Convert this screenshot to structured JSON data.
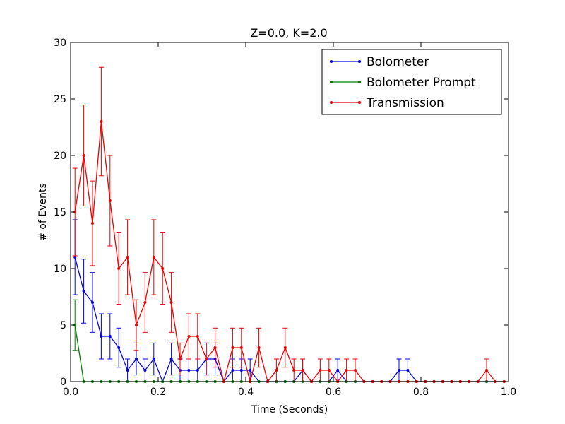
{
  "chart_data": {
    "type": "line",
    "title": "Z=0.0, K=2.0",
    "xlabel": "Time (Seconds)",
    "ylabel": "# of Events",
    "xlim": [
      0.0,
      1.0
    ],
    "ylim": [
      0,
      30
    ],
    "xticks": [
      "0.0",
      "0.2",
      "0.4",
      "0.6",
      "0.8",
      "1.0"
    ],
    "yticks": [
      "0",
      "5",
      "10",
      "15",
      "20",
      "25",
      "30"
    ],
    "grid": false,
    "legend_position": "top-right",
    "x": [
      0.01,
      0.03,
      0.05,
      0.07,
      0.09,
      0.11,
      0.13,
      0.15,
      0.17,
      0.19,
      0.21,
      0.23,
      0.25,
      0.27,
      0.29,
      0.31,
      0.33,
      0.35,
      0.37,
      0.39,
      0.41,
      0.43,
      0.45,
      0.47,
      0.49,
      0.51,
      0.53,
      0.55,
      0.57,
      0.59,
      0.61,
      0.63,
      0.65,
      0.67,
      0.69,
      0.71,
      0.73,
      0.75,
      0.77,
      0.79,
      0.81,
      0.83,
      0.85,
      0.87,
      0.89,
      0.91,
      0.93,
      0.95,
      0.97,
      0.99
    ],
    "series": [
      {
        "name": "Bolometer",
        "color": "#0000ee",
        "values": [
          11,
          8,
          7,
          4,
          4,
          3,
          1,
          2,
          1,
          2,
          0,
          2,
          1,
          1,
          1,
          2,
          2,
          0,
          1,
          1,
          1,
          0,
          0,
          0,
          0,
          0,
          1,
          0,
          0,
          0,
          1,
          0,
          0,
          0,
          0,
          0,
          0,
          1,
          1,
          0,
          0,
          0,
          0,
          0,
          0,
          0,
          0,
          0,
          0,
          0
        ]
      },
      {
        "name": "Bolometer Prompt",
        "color": "#008000",
        "values": [
          5,
          0,
          0,
          0,
          0,
          0,
          0,
          0,
          0,
          0,
          0,
          0,
          0,
          0,
          0,
          0,
          0,
          0,
          0,
          0,
          0,
          0,
          0,
          0,
          0,
          0,
          0,
          0,
          0,
          0,
          0,
          0,
          0,
          0,
          0,
          0,
          0,
          0,
          0,
          0,
          0,
          0,
          0,
          0,
          0,
          0,
          0,
          0,
          0,
          0
        ]
      },
      {
        "name": "Transmission",
        "color": "#ee0000",
        "values": [
          15,
          20,
          14,
          23,
          16,
          10,
          11,
          5,
          7,
          11,
          10,
          7,
          2,
          4,
          4,
          2,
          3,
          0,
          3,
          3,
          0,
          3,
          0,
          1,
          3,
          1,
          1,
          0,
          1,
          1,
          0,
          1,
          1,
          0,
          0,
          0,
          0,
          0,
          0,
          0,
          0,
          0,
          0,
          0,
          0,
          0,
          0,
          1,
          0,
          0
        ]
      }
    ]
  }
}
